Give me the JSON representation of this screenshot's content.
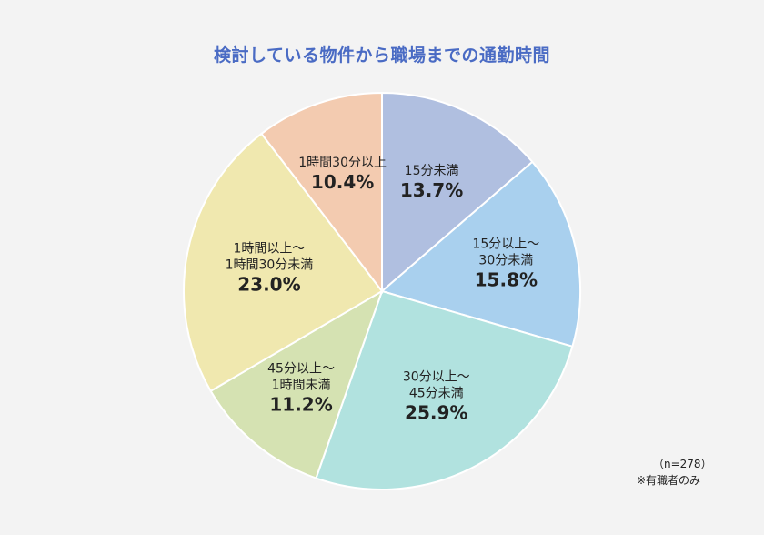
{
  "chart_data": {
    "type": "pie",
    "title": "検討している物件から職場までの通勤時間",
    "slices": [
      {
        "label_lines": [
          "15分未満"
        ],
        "value": 13.7,
        "value_label": "13.7%",
        "color": "#b0bfe0"
      },
      {
        "label_lines": [
          "15分以上～",
          "30分未満"
        ],
        "value": 15.8,
        "value_label": "15.8%",
        "color": "#a9d0ee"
      },
      {
        "label_lines": [
          "30分以上～",
          "45分未満"
        ],
        "value": 25.9,
        "value_label": "25.9%",
        "color": "#b1e2df"
      },
      {
        "label_lines": [
          "45分以上～",
          "1時間未満"
        ],
        "value": 11.2,
        "value_label": "11.2%",
        "color": "#d5e2b2"
      },
      {
        "label_lines": [
          "1時間以上～",
          "1時間30分未満"
        ],
        "value": 23.0,
        "value_label": "23.0%",
        "color": "#f0e8af"
      },
      {
        "label_lines": [
          "1時間30分以上"
        ],
        "value": 10.4,
        "value_label": "10.4%",
        "color": "#f3cbb0"
      }
    ],
    "start": "12 o'clock",
    "direction": "clockwise"
  },
  "note": {
    "sample_size": "（n=278）",
    "footnote": "※有職者のみ"
  }
}
